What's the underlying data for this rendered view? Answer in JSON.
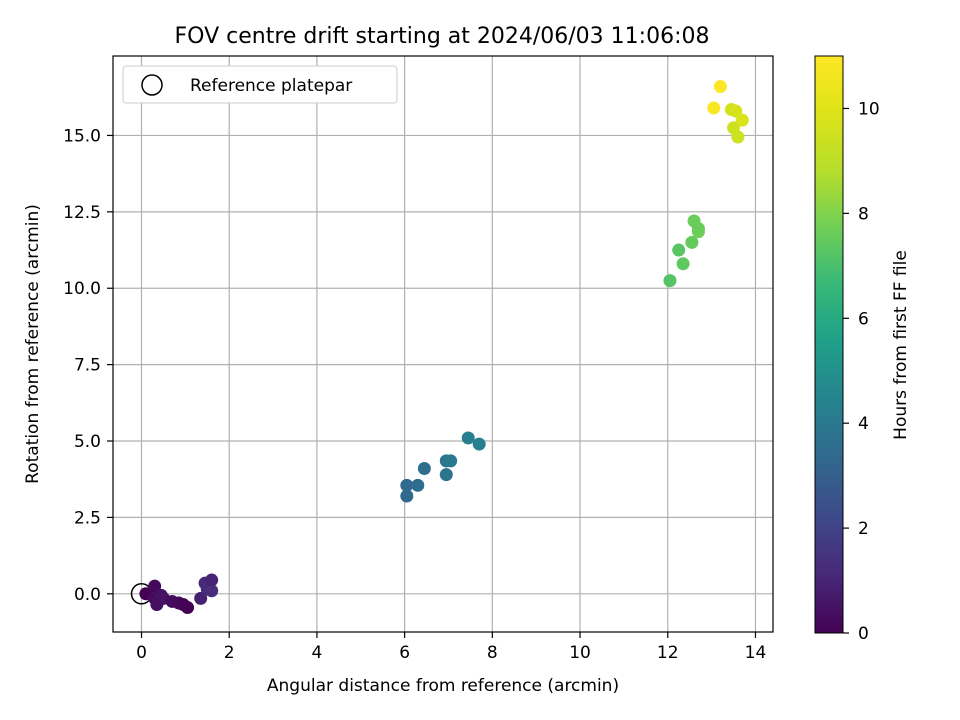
{
  "chart_data": {
    "type": "scatter",
    "title": "FOV centre drift starting at 2024/06/03 11:06:08",
    "xlabel": "Angular distance from reference (arcmin)",
    "ylabel": "Rotation from reference (arcmin)",
    "xlim": [
      -0.65,
      14.4
    ],
    "ylim": [
      -1.25,
      17.6
    ],
    "xticks": [
      0,
      2,
      4,
      6,
      8,
      10,
      12,
      14
    ],
    "xtick_labels": [
      "0",
      "2",
      "4",
      "6",
      "8",
      "10",
      "12",
      "14"
    ],
    "yticks": [
      0.0,
      2.5,
      5.0,
      7.5,
      10.0,
      12.5,
      15.0
    ],
    "ytick_labels": [
      "0.0",
      "2.5",
      "5.0",
      "7.5",
      "10.0",
      "12.5",
      "15.0"
    ],
    "grid": true,
    "legend": {
      "location": "upper-left",
      "label": "Reference platepar"
    },
    "reference_point": {
      "x": 0,
      "y": 0
    },
    "colorbar": {
      "label": "Hours from first FF file",
      "colormap": "viridis",
      "range": [
        0,
        11
      ],
      "ticks": [
        0,
        2,
        4,
        6,
        8,
        10
      ],
      "tick_labels": [
        "0",
        "2",
        "4",
        "6",
        "8",
        "10"
      ]
    },
    "points": [
      {
        "x": 0.1,
        "y": 0.0,
        "hours": 0.0
      },
      {
        "x": 0.3,
        "y": 0.25,
        "hours": 0.2
      },
      {
        "x": 0.3,
        "y": -0.15,
        "hours": 0.3
      },
      {
        "x": 0.35,
        "y": -0.35,
        "hours": 0.4
      },
      {
        "x": 0.45,
        "y": -0.05,
        "hours": 0.5
      },
      {
        "x": 0.5,
        "y": -0.15,
        "hours": 0.5
      },
      {
        "x": 0.7,
        "y": -0.25,
        "hours": 0.3
      },
      {
        "x": 0.85,
        "y": -0.3,
        "hours": 0.2
      },
      {
        "x": 0.95,
        "y": -0.35,
        "hours": 0.1
      },
      {
        "x": 1.05,
        "y": -0.45,
        "hours": 0.0
      },
      {
        "x": 1.35,
        "y": -0.15,
        "hours": 0.9
      },
      {
        "x": 1.45,
        "y": 0.35,
        "hours": 1.1
      },
      {
        "x": 1.5,
        "y": 0.15,
        "hours": 1.2
      },
      {
        "x": 1.6,
        "y": 0.1,
        "hours": 1.3
      },
      {
        "x": 1.6,
        "y": 0.45,
        "hours": 1.0
      },
      {
        "x": 6.05,
        "y": 3.2,
        "hours": 3.3
      },
      {
        "x": 6.05,
        "y": 3.55,
        "hours": 3.4
      },
      {
        "x": 6.3,
        "y": 3.55,
        "hours": 3.5
      },
      {
        "x": 6.45,
        "y": 4.1,
        "hours": 3.6
      },
      {
        "x": 6.95,
        "y": 3.9,
        "hours": 3.8
      },
      {
        "x": 6.95,
        "y": 4.35,
        "hours": 3.9
      },
      {
        "x": 7.05,
        "y": 4.35,
        "hours": 4.0
      },
      {
        "x": 7.45,
        "y": 5.1,
        "hours": 4.2
      },
      {
        "x": 7.7,
        "y": 4.9,
        "hours": 4.3
      },
      {
        "x": 12.05,
        "y": 10.25,
        "hours": 7.2
      },
      {
        "x": 12.25,
        "y": 11.25,
        "hours": 7.3
      },
      {
        "x": 12.35,
        "y": 10.8,
        "hours": 7.4
      },
      {
        "x": 12.55,
        "y": 11.5,
        "hours": 7.5
      },
      {
        "x": 12.6,
        "y": 12.2,
        "hours": 7.6
      },
      {
        "x": 12.7,
        "y": 11.85,
        "hours": 7.7
      },
      {
        "x": 12.7,
        "y": 11.95,
        "hours": 7.6
      },
      {
        "x": 13.05,
        "y": 15.9,
        "hours": 10.9
      },
      {
        "x": 13.2,
        "y": 16.6,
        "hours": 11.0
      },
      {
        "x": 13.45,
        "y": 15.85,
        "hours": 9.6
      },
      {
        "x": 13.5,
        "y": 15.25,
        "hours": 9.5
      },
      {
        "x": 13.55,
        "y": 15.8,
        "hours": 9.7
      },
      {
        "x": 13.6,
        "y": 14.95,
        "hours": 9.4
      },
      {
        "x": 13.7,
        "y": 15.5,
        "hours": 9.8
      }
    ]
  }
}
